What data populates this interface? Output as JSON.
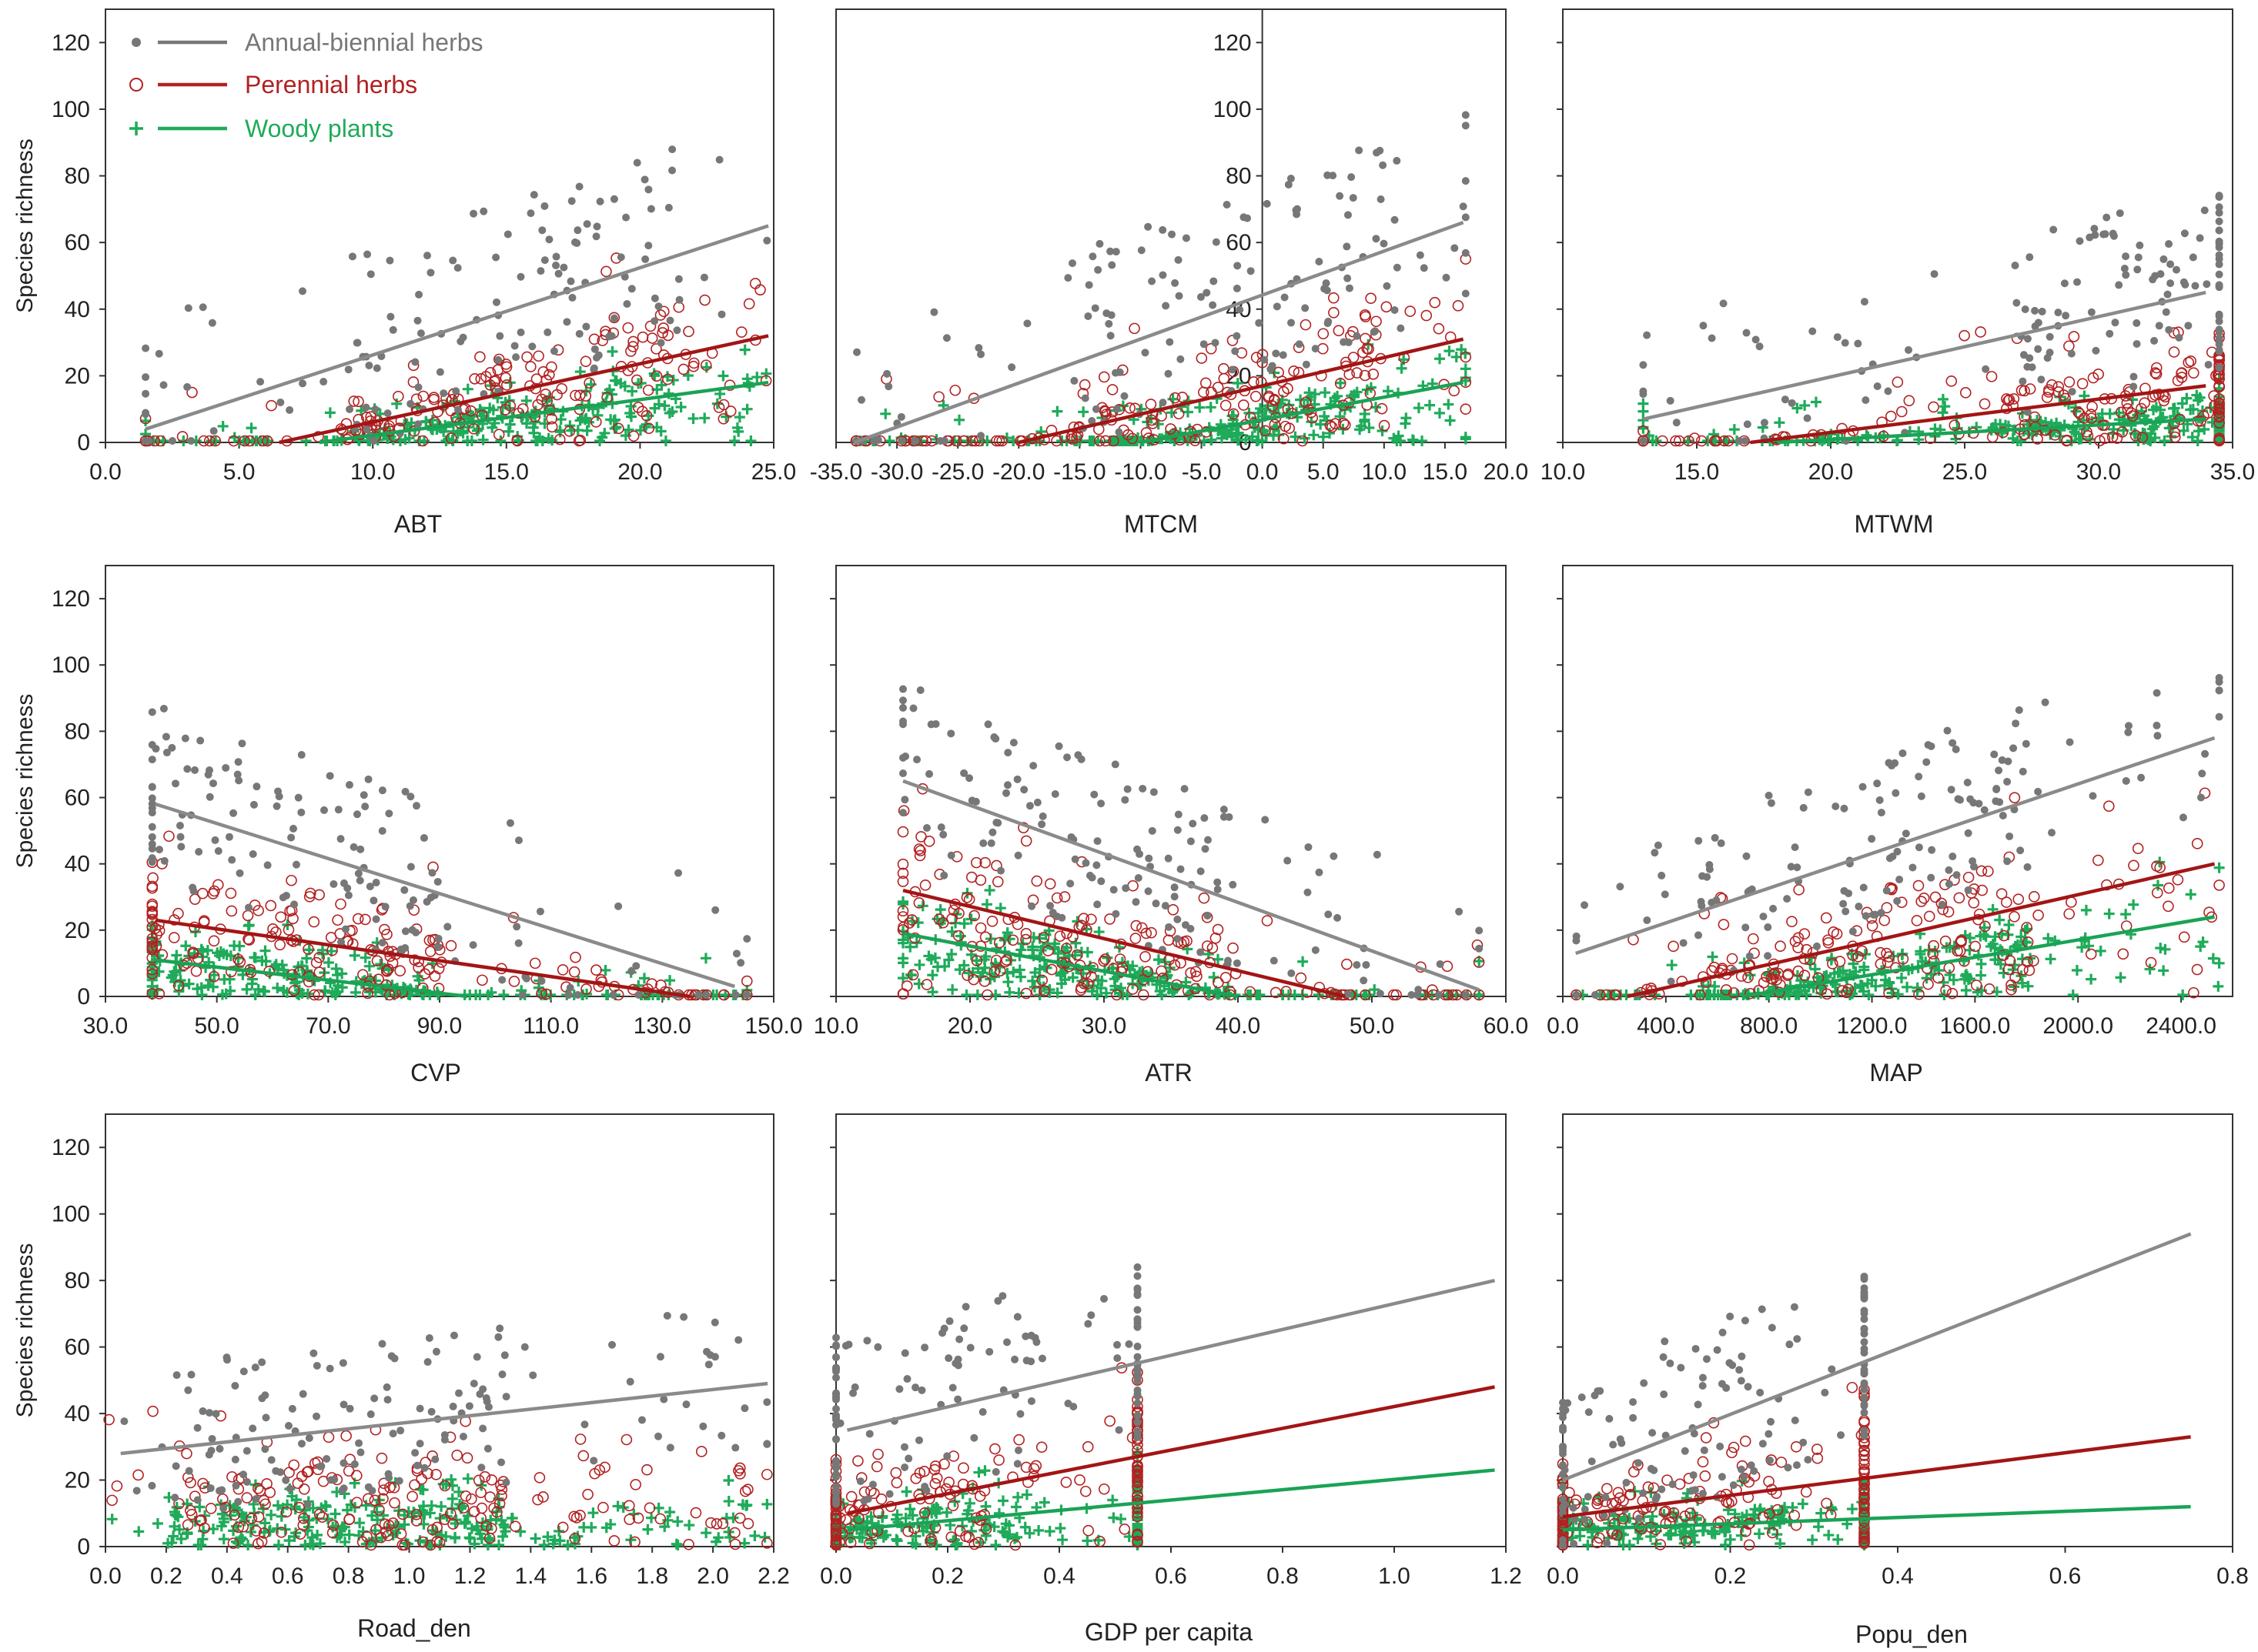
{
  "figure": {
    "legend": [
      {
        "key": "annual",
        "label": "Annual-biennial herbs",
        "color": "#777777",
        "marker": "dot"
      },
      {
        "key": "perennial",
        "label": "Perennial herbs",
        "color": "#b22222",
        "marker": "circle"
      },
      {
        "key": "woody",
        "label": "Woody plants",
        "color": "#1fab5a",
        "marker": "plus"
      }
    ],
    "ylabel": "Species richness"
  },
  "chart_data": [
    {
      "type": "scatter",
      "id": "abt",
      "xlabel": "ABT",
      "xticks": [
        "0.0",
        "5.0",
        "10.0",
        "15.0",
        "20.0",
        "25.0"
      ],
      "xlim": [
        0,
        25
      ],
      "yticks": [
        "0",
        "20",
        "40",
        "60",
        "80",
        "100",
        "120"
      ],
      "ylim": [
        0,
        130
      ],
      "fits": {
        "annual": [
          [
            1.5,
            4
          ],
          [
            24.8,
            65
          ]
        ],
        "perennial": [
          [
            6.5,
            0
          ],
          [
            24.8,
            32
          ]
        ],
        "woody": [
          [
            8,
            0
          ],
          [
            24.8,
            18
          ]
        ]
      }
    },
    {
      "type": "scatter",
      "id": "mtcm",
      "xlabel": "MTCM",
      "xticks": [
        "-35.0",
        "-30.0",
        "-25.0",
        "-20.0",
        "-15.0",
        "-10.0",
        "-5.0",
        "0.0",
        "5.0",
        "10.0",
        "15.0",
        "20.0"
      ],
      "xlim": [
        -35,
        20
      ],
      "yticks": [
        "0",
        "20",
        "40",
        "60",
        "80",
        "100",
        "120"
      ],
      "ylim": [
        0,
        130
      ],
      "yaxis_at_zero": true,
      "fits": {
        "annual": [
          [
            -33.5,
            0
          ],
          [
            16.5,
            66
          ]
        ],
        "perennial": [
          [
            -20,
            0
          ],
          [
            16.5,
            31
          ]
        ],
        "woody": [
          [
            -10,
            0
          ],
          [
            16.5,
            18
          ]
        ]
      }
    },
    {
      "type": "scatter",
      "id": "mtwm",
      "xlabel": "MTWM",
      "xticks": [
        "10.0",
        "15.0",
        "20.0",
        "25.0",
        "30.0",
        "35.0"
      ],
      "xlim": [
        10,
        35
      ],
      "yticks": [
        "0",
        "20",
        "40",
        "60",
        "80",
        "100",
        "120"
      ],
      "ylim": [
        0,
        130
      ],
      "fits": {
        "annual": [
          [
            13,
            7
          ],
          [
            34,
            45
          ]
        ],
        "perennial": [
          [
            17,
            0
          ],
          [
            34,
            17
          ]
        ],
        "woody": [
          [
            18,
            0
          ],
          [
            34,
            7
          ]
        ]
      }
    },
    {
      "type": "scatter",
      "id": "cvp",
      "xlabel": "CVP",
      "xticks": [
        "30.0",
        "50.0",
        "70.0",
        "90.0",
        "110.0",
        "130.0",
        "150.0"
      ],
      "xlim": [
        30,
        150
      ],
      "yticks": [
        "0",
        "20",
        "40",
        "60",
        "80",
        "100",
        "120"
      ],
      "ylim": [
        0,
        130
      ],
      "fits": {
        "annual": [
          [
            39,
            58
          ],
          [
            143,
            3
          ]
        ],
        "perennial": [
          [
            39,
            23
          ],
          [
            135,
            0
          ]
        ],
        "woody": [
          [
            39,
            11
          ],
          [
            95,
            0
          ]
        ]
      }
    },
    {
      "type": "scatter",
      "id": "atr",
      "xlabel": "ATR",
      "xticks": [
        "10.0",
        "20.0",
        "30.0",
        "40.0",
        "50.0",
        "60.0"
      ],
      "xlim": [
        10,
        60
      ],
      "yticks": [
        "0",
        "20",
        "40",
        "60",
        "80",
        "100",
        "120"
      ],
      "ylim": [
        0,
        130
      ],
      "fits": {
        "annual": [
          [
            15,
            65
          ],
          [
            58,
            2
          ]
        ],
        "perennial": [
          [
            15,
            32
          ],
          [
            48,
            0
          ]
        ],
        "woody": [
          [
            15,
            19
          ],
          [
            40,
            0
          ]
        ]
      }
    },
    {
      "type": "scatter",
      "id": "map",
      "xlabel": "MAP",
      "xticks": [
        "0.0",
        "400.0",
        "800.0",
        "1200.0",
        "1600.0",
        "2000.0",
        "2400.0"
      ],
      "xlim": [
        0,
        2600
      ],
      "yticks": [
        "0",
        "20",
        "40",
        "60",
        "80",
        "100",
        "120"
      ],
      "ylim": [
        0,
        130
      ],
      "fits": {
        "annual": [
          [
            50,
            13
          ],
          [
            2530,
            78
          ]
        ],
        "perennial": [
          [
            250,
            0
          ],
          [
            2530,
            40
          ]
        ],
        "woody": [
          [
            700,
            0
          ],
          [
            2530,
            24
          ]
        ]
      }
    },
    {
      "type": "scatter",
      "id": "road",
      "xlabel": "Road_den",
      "xticks": [
        "0.0",
        "0.2",
        "0.4",
        "0.6",
        "0.8",
        "1.0",
        "1.2",
        "1.4",
        "1.6",
        "1.8",
        "2.0",
        "2.2"
      ],
      "xlim": [
        0,
        2.2
      ],
      "yticks": [
        "0",
        "20",
        "40",
        "60",
        "80",
        "100",
        "120"
      ],
      "ylim": [
        0,
        130
      ],
      "fits": {
        "annual": [
          [
            0.05,
            28
          ],
          [
            2.18,
            49
          ]
        ]
      }
    },
    {
      "type": "scatter",
      "id": "gdp",
      "xlabel": "GDP per capita",
      "xticks": [
        "0.0",
        "0.2",
        "0.4",
        "0.6",
        "0.8",
        "1.0",
        "1.2"
      ],
      "xlim": [
        0,
        1.2
      ],
      "yticks": [
        "0",
        "20",
        "40",
        "60",
        "80",
        "100",
        "120"
      ],
      "ylim": [
        0,
        130
      ],
      "fits": {
        "annual": [
          [
            0.02,
            35
          ],
          [
            1.18,
            80
          ]
        ],
        "perennial": [
          [
            0.02,
            10
          ],
          [
            1.18,
            48
          ]
        ],
        "woody": [
          [
            0.02,
            5
          ],
          [
            1.18,
            23
          ]
        ]
      }
    },
    {
      "type": "scatter",
      "id": "popu",
      "xlabel": "Popu_den",
      "xticks": [
        "0.0",
        "0.2",
        "0.4",
        "0.6",
        "0.8"
      ],
      "xlim": [
        0,
        0.8
      ],
      "yticks": [
        "0",
        "20",
        "40",
        "60",
        "80",
        "100",
        "120"
      ],
      "ylim": [
        0,
        130
      ],
      "fits": {
        "annual": [
          [
            0.0,
            20
          ],
          [
            0.75,
            94
          ]
        ],
        "perennial": [
          [
            0.0,
            9
          ],
          [
            0.75,
            33
          ]
        ],
        "woody": [
          [
            0.0,
            5
          ],
          [
            0.75,
            12
          ]
        ]
      }
    }
  ]
}
